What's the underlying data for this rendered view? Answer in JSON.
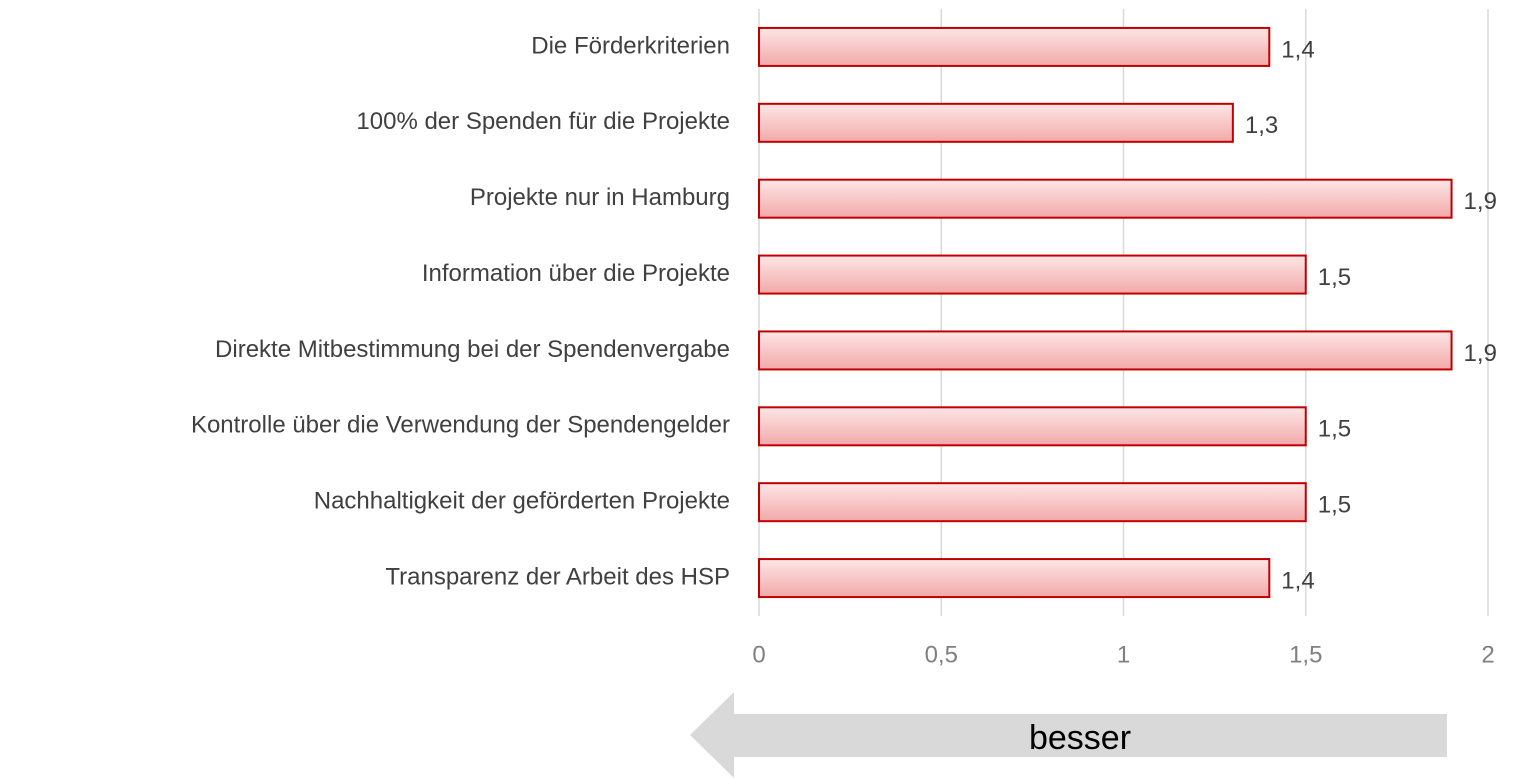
{
  "chart_data": {
    "type": "bar",
    "orientation": "horizontal",
    "categories": [
      "Die Förderkriterien",
      "100% der Spenden für die Projekte",
      "Projekte nur in Hamburg",
      "Information über die Projekte",
      "Direkte Mitbestimmung bei der Spendenvergabe",
      "Kontrolle über die Verwendung der Spendengelder",
      "Nachhaltigkeit der geförderten Projekte",
      "Transparenz der Arbeit des HSP"
    ],
    "values": [
      1.4,
      1.3,
      1.9,
      1.5,
      1.9,
      1.5,
      1.5,
      1.4
    ],
    "value_labels": [
      "1,4",
      "1,3",
      "1,9",
      "1,5",
      "1,9",
      "1,5",
      "1,5",
      "1,4"
    ],
    "color": "#c00000",
    "xlim": [
      0,
      2
    ],
    "xticks": [
      0,
      {
        "value": 0.5,
        "label": "0,5"
      },
      1,
      {
        "value": 1.5,
        "label": "1,5"
      },
      2
    ],
    "grid": true,
    "annotation": "besser"
  }
}
